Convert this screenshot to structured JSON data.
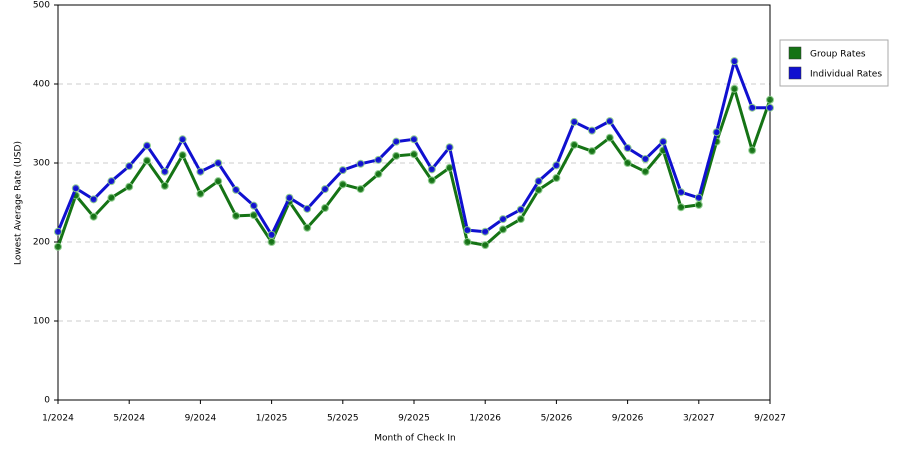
{
  "chart_data": {
    "type": "line",
    "x_label": "Month of Check In",
    "y_label": "Lowest Average Rate (USD)",
    "categories": [
      "1/2024",
      null,
      null,
      null,
      "5/2024",
      null,
      null,
      null,
      "9/2024",
      null,
      null,
      null,
      "1/2025",
      null,
      null,
      null,
      "5/2025",
      null,
      null,
      null,
      "9/2025",
      null,
      null,
      null,
      "1/2026",
      null,
      null,
      null,
      "5/2026",
      null,
      null,
      null,
      "9/2026",
      null,
      null,
      null,
      "3/2027",
      null,
      null,
      null,
      "9/2027"
    ],
    "series": [
      {
        "name": "Group Rates",
        "color": "#157315",
        "values": [
          194,
          259,
          232,
          256,
          270,
          303,
          271,
          310,
          261,
          277,
          233,
          234,
          200,
          251,
          218,
          243,
          273,
          267,
          286,
          309,
          311,
          278,
          294,
          200,
          196,
          216,
          229,
          266,
          281,
          323,
          315,
          332,
          300,
          289,
          316,
          244,
          247,
          327,
          394,
          316,
          380
        ]
      },
      {
        "name": "Individual Rates",
        "color": "#1010d0",
        "values": [
          213,
          268,
          254,
          277,
          296,
          322,
          289,
          330,
          289,
          300,
          266,
          246,
          209,
          256,
          242,
          267,
          291,
          299,
          304,
          327,
          330,
          292,
          320,
          215,
          213,
          229,
          241,
          277,
          297,
          352,
          341,
          353,
          319,
          305,
          327,
          263,
          256,
          339,
          429,
          370,
          370
        ]
      }
    ],
    "ylim": [
      0,
      500
    ],
    "yticks": [
      0,
      100,
      200,
      300,
      400,
      500
    ],
    "grid": true,
    "legend": "right"
  }
}
